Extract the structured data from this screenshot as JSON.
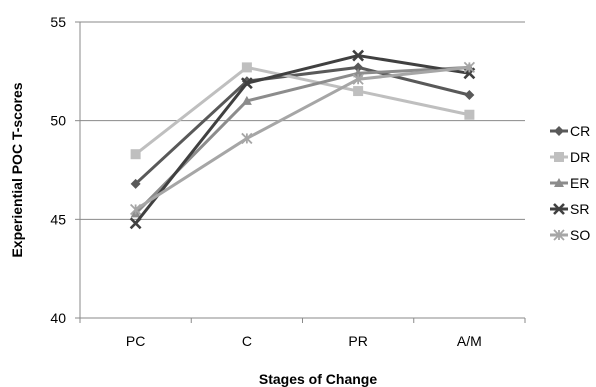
{
  "chart_data": {
    "type": "line",
    "title": "",
    "xlabel": "Stages of Change",
    "ylabel": "Experiential POC T-scores",
    "categories": [
      "PC",
      "C",
      "PR",
      "A/M"
    ],
    "ylim": [
      40,
      55
    ],
    "yticks": [
      40,
      45,
      50,
      55
    ],
    "grid": true,
    "legend_position": "right",
    "series": [
      {
        "name": "CR",
        "values": [
          46.8,
          52.0,
          52.7,
          51.3
        ],
        "color": "#595959",
        "marker": "diamond"
      },
      {
        "name": "DR",
        "values": [
          48.3,
          52.7,
          51.5,
          50.3
        ],
        "color": "#bfbfbf",
        "marker": "square"
      },
      {
        "name": "ER",
        "values": [
          45.3,
          51.0,
          52.4,
          52.7
        ],
        "color": "#8c8c8c",
        "marker": "triangle"
      },
      {
        "name": "SR",
        "values": [
          44.8,
          51.9,
          53.3,
          52.4
        ],
        "color": "#404040",
        "marker": "x"
      },
      {
        "name": "SO",
        "values": [
          45.5,
          49.1,
          52.1,
          52.7
        ],
        "color": "#a6a6a6",
        "marker": "star"
      }
    ]
  }
}
